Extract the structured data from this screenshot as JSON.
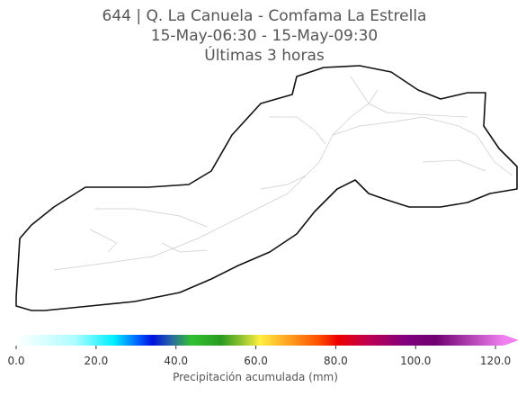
{
  "title": [
    "644 | Q. La Canuela - Comfama La Estrella",
    "15-May-06:30 - 15-May-09:30",
    "Últimas 3 horas"
  ],
  "colorbar": {
    "label": "Precipitación acumulada (mm)",
    "lim": [
      0,
      122
    ],
    "ticks": [
      {
        "value": 0,
        "label": "0.0"
      },
      {
        "value": 20,
        "label": "20.0"
      },
      {
        "value": 40,
        "label": "40.0"
      },
      {
        "value": 60,
        "label": "60.0"
      },
      {
        "value": 80,
        "label": "80.0"
      },
      {
        "value": 100,
        "label": "100.0"
      },
      {
        "value": 120,
        "label": "120.0"
      }
    ]
  }
}
